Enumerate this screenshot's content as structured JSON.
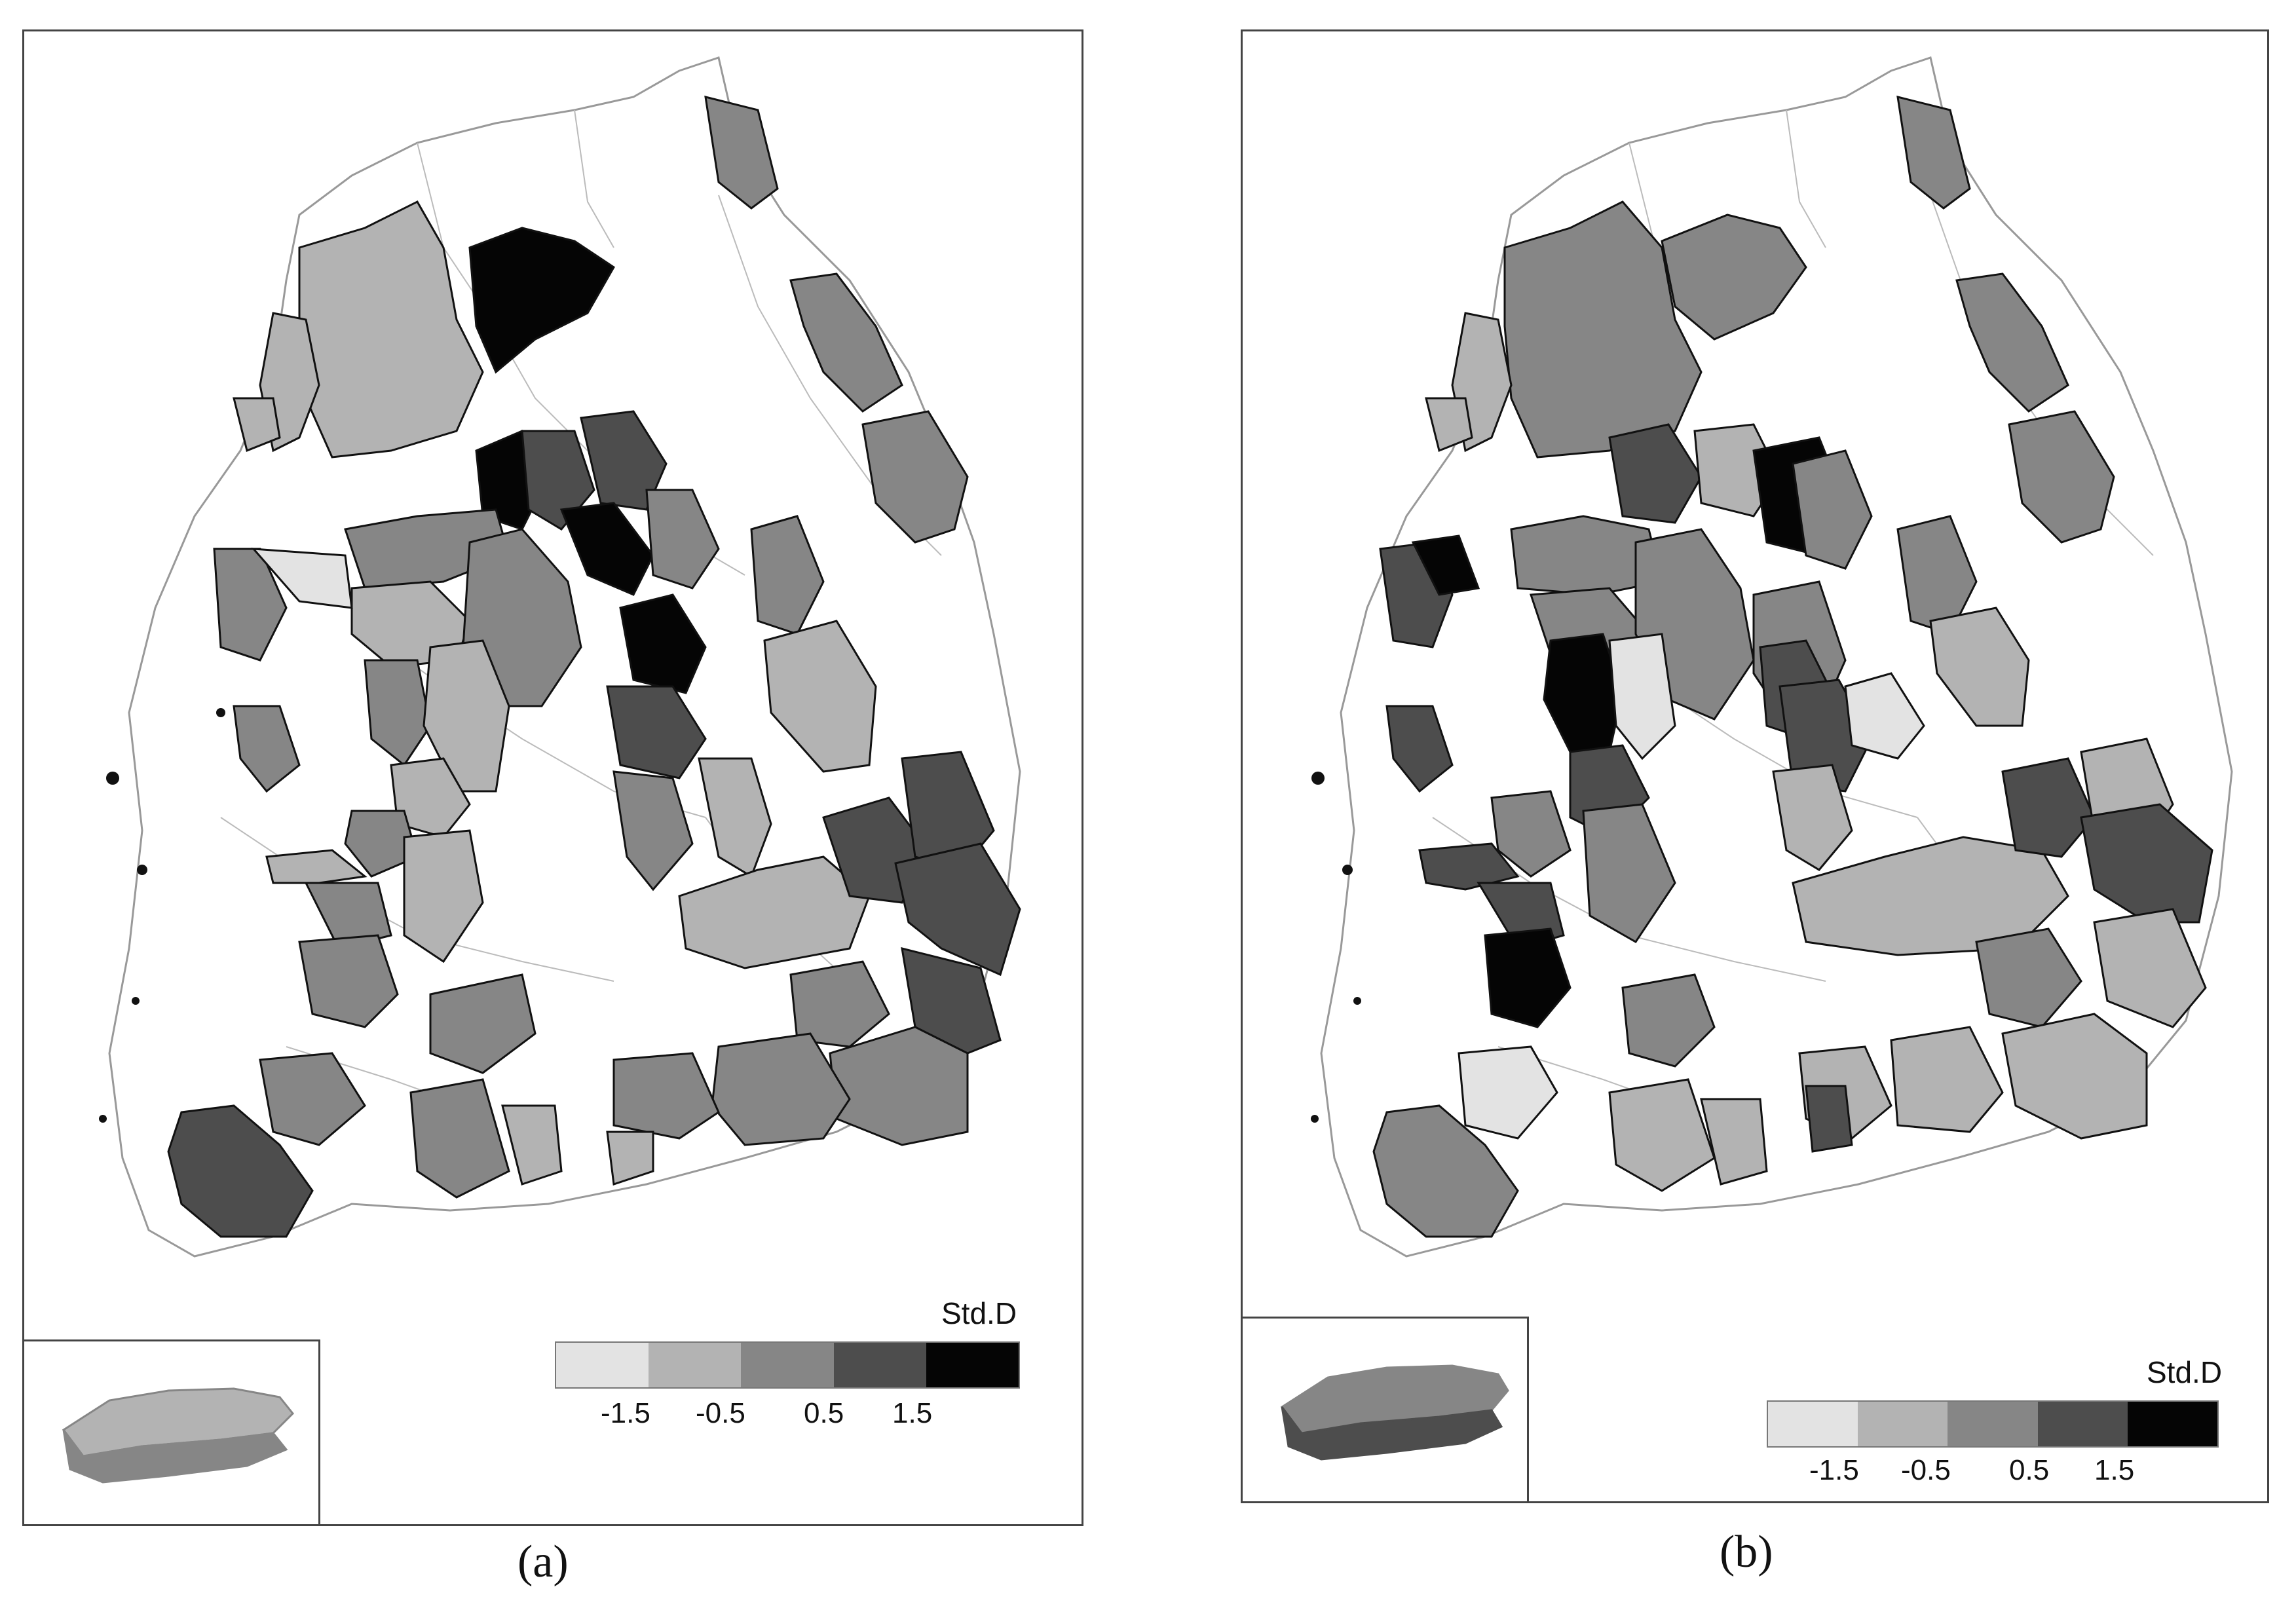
{
  "legend": {
    "title": "Std.D",
    "colors": [
      "#e3e3e3",
      "#b3b3b3",
      "#868686",
      "#4d4d4d",
      "#050505"
    ],
    "ticks": [
      "-1.5",
      "-0.5",
      "0.5",
      "1.5"
    ]
  },
  "panels": [
    {
      "id": "a",
      "caption": "(a)"
    },
    {
      "id": "b",
      "caption": "(b)"
    }
  ]
}
